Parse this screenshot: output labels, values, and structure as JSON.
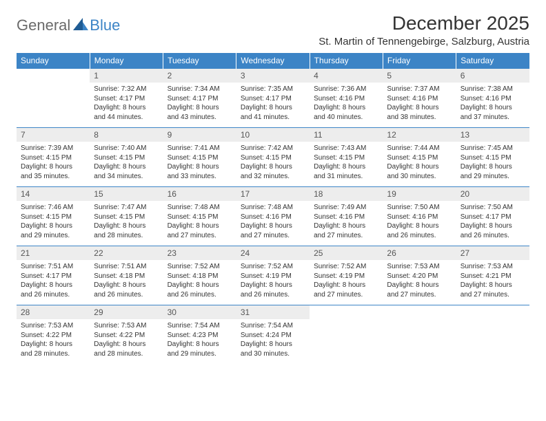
{
  "brand": {
    "part1": "General",
    "part2": "Blue"
  },
  "header": {
    "month_title": "December 2025",
    "location": "St. Martin of Tennengebirge, Salzburg, Austria"
  },
  "colors": {
    "accent": "#3c84c6",
    "header_text": "#ffffff",
    "daybar": "#ededed",
    "body_text": "#333333",
    "logo_gray": "#6a6a6a"
  },
  "weekdays": [
    "Sunday",
    "Monday",
    "Tuesday",
    "Wednesday",
    "Thursday",
    "Friday",
    "Saturday"
  ],
  "weeks": [
    [
      {
        "n": ""
      },
      {
        "n": "1",
        "sr": "Sunrise: 7:32 AM",
        "ss": "Sunset: 4:17 PM",
        "dl1": "Daylight: 8 hours",
        "dl2": "and 44 minutes."
      },
      {
        "n": "2",
        "sr": "Sunrise: 7:34 AM",
        "ss": "Sunset: 4:17 PM",
        "dl1": "Daylight: 8 hours",
        "dl2": "and 43 minutes."
      },
      {
        "n": "3",
        "sr": "Sunrise: 7:35 AM",
        "ss": "Sunset: 4:17 PM",
        "dl1": "Daylight: 8 hours",
        "dl2": "and 41 minutes."
      },
      {
        "n": "4",
        "sr": "Sunrise: 7:36 AM",
        "ss": "Sunset: 4:16 PM",
        "dl1": "Daylight: 8 hours",
        "dl2": "and 40 minutes."
      },
      {
        "n": "5",
        "sr": "Sunrise: 7:37 AM",
        "ss": "Sunset: 4:16 PM",
        "dl1": "Daylight: 8 hours",
        "dl2": "and 38 minutes."
      },
      {
        "n": "6",
        "sr": "Sunrise: 7:38 AM",
        "ss": "Sunset: 4:16 PM",
        "dl1": "Daylight: 8 hours",
        "dl2": "and 37 minutes."
      }
    ],
    [
      {
        "n": "7",
        "sr": "Sunrise: 7:39 AM",
        "ss": "Sunset: 4:15 PM",
        "dl1": "Daylight: 8 hours",
        "dl2": "and 35 minutes."
      },
      {
        "n": "8",
        "sr": "Sunrise: 7:40 AM",
        "ss": "Sunset: 4:15 PM",
        "dl1": "Daylight: 8 hours",
        "dl2": "and 34 minutes."
      },
      {
        "n": "9",
        "sr": "Sunrise: 7:41 AM",
        "ss": "Sunset: 4:15 PM",
        "dl1": "Daylight: 8 hours",
        "dl2": "and 33 minutes."
      },
      {
        "n": "10",
        "sr": "Sunrise: 7:42 AM",
        "ss": "Sunset: 4:15 PM",
        "dl1": "Daylight: 8 hours",
        "dl2": "and 32 minutes."
      },
      {
        "n": "11",
        "sr": "Sunrise: 7:43 AM",
        "ss": "Sunset: 4:15 PM",
        "dl1": "Daylight: 8 hours",
        "dl2": "and 31 minutes."
      },
      {
        "n": "12",
        "sr": "Sunrise: 7:44 AM",
        "ss": "Sunset: 4:15 PM",
        "dl1": "Daylight: 8 hours",
        "dl2": "and 30 minutes."
      },
      {
        "n": "13",
        "sr": "Sunrise: 7:45 AM",
        "ss": "Sunset: 4:15 PM",
        "dl1": "Daylight: 8 hours",
        "dl2": "and 29 minutes."
      }
    ],
    [
      {
        "n": "14",
        "sr": "Sunrise: 7:46 AM",
        "ss": "Sunset: 4:15 PM",
        "dl1": "Daylight: 8 hours",
        "dl2": "and 29 minutes."
      },
      {
        "n": "15",
        "sr": "Sunrise: 7:47 AM",
        "ss": "Sunset: 4:15 PM",
        "dl1": "Daylight: 8 hours",
        "dl2": "and 28 minutes."
      },
      {
        "n": "16",
        "sr": "Sunrise: 7:48 AM",
        "ss": "Sunset: 4:15 PM",
        "dl1": "Daylight: 8 hours",
        "dl2": "and 27 minutes."
      },
      {
        "n": "17",
        "sr": "Sunrise: 7:48 AM",
        "ss": "Sunset: 4:16 PM",
        "dl1": "Daylight: 8 hours",
        "dl2": "and 27 minutes."
      },
      {
        "n": "18",
        "sr": "Sunrise: 7:49 AM",
        "ss": "Sunset: 4:16 PM",
        "dl1": "Daylight: 8 hours",
        "dl2": "and 27 minutes."
      },
      {
        "n": "19",
        "sr": "Sunrise: 7:50 AM",
        "ss": "Sunset: 4:16 PM",
        "dl1": "Daylight: 8 hours",
        "dl2": "and 26 minutes."
      },
      {
        "n": "20",
        "sr": "Sunrise: 7:50 AM",
        "ss": "Sunset: 4:17 PM",
        "dl1": "Daylight: 8 hours",
        "dl2": "and 26 minutes."
      }
    ],
    [
      {
        "n": "21",
        "sr": "Sunrise: 7:51 AM",
        "ss": "Sunset: 4:17 PM",
        "dl1": "Daylight: 8 hours",
        "dl2": "and 26 minutes."
      },
      {
        "n": "22",
        "sr": "Sunrise: 7:51 AM",
        "ss": "Sunset: 4:18 PM",
        "dl1": "Daylight: 8 hours",
        "dl2": "and 26 minutes."
      },
      {
        "n": "23",
        "sr": "Sunrise: 7:52 AM",
        "ss": "Sunset: 4:18 PM",
        "dl1": "Daylight: 8 hours",
        "dl2": "and 26 minutes."
      },
      {
        "n": "24",
        "sr": "Sunrise: 7:52 AM",
        "ss": "Sunset: 4:19 PM",
        "dl1": "Daylight: 8 hours",
        "dl2": "and 26 minutes."
      },
      {
        "n": "25",
        "sr": "Sunrise: 7:52 AM",
        "ss": "Sunset: 4:19 PM",
        "dl1": "Daylight: 8 hours",
        "dl2": "and 27 minutes."
      },
      {
        "n": "26",
        "sr": "Sunrise: 7:53 AM",
        "ss": "Sunset: 4:20 PM",
        "dl1": "Daylight: 8 hours",
        "dl2": "and 27 minutes."
      },
      {
        "n": "27",
        "sr": "Sunrise: 7:53 AM",
        "ss": "Sunset: 4:21 PM",
        "dl1": "Daylight: 8 hours",
        "dl2": "and 27 minutes."
      }
    ],
    [
      {
        "n": "28",
        "sr": "Sunrise: 7:53 AM",
        "ss": "Sunset: 4:22 PM",
        "dl1": "Daylight: 8 hours",
        "dl2": "and 28 minutes."
      },
      {
        "n": "29",
        "sr": "Sunrise: 7:53 AM",
        "ss": "Sunset: 4:22 PM",
        "dl1": "Daylight: 8 hours",
        "dl2": "and 28 minutes."
      },
      {
        "n": "30",
        "sr": "Sunrise: 7:54 AM",
        "ss": "Sunset: 4:23 PM",
        "dl1": "Daylight: 8 hours",
        "dl2": "and 29 minutes."
      },
      {
        "n": "31",
        "sr": "Sunrise: 7:54 AM",
        "ss": "Sunset: 4:24 PM",
        "dl1": "Daylight: 8 hours",
        "dl2": "and 30 minutes."
      },
      {
        "n": ""
      },
      {
        "n": ""
      },
      {
        "n": ""
      }
    ]
  ]
}
